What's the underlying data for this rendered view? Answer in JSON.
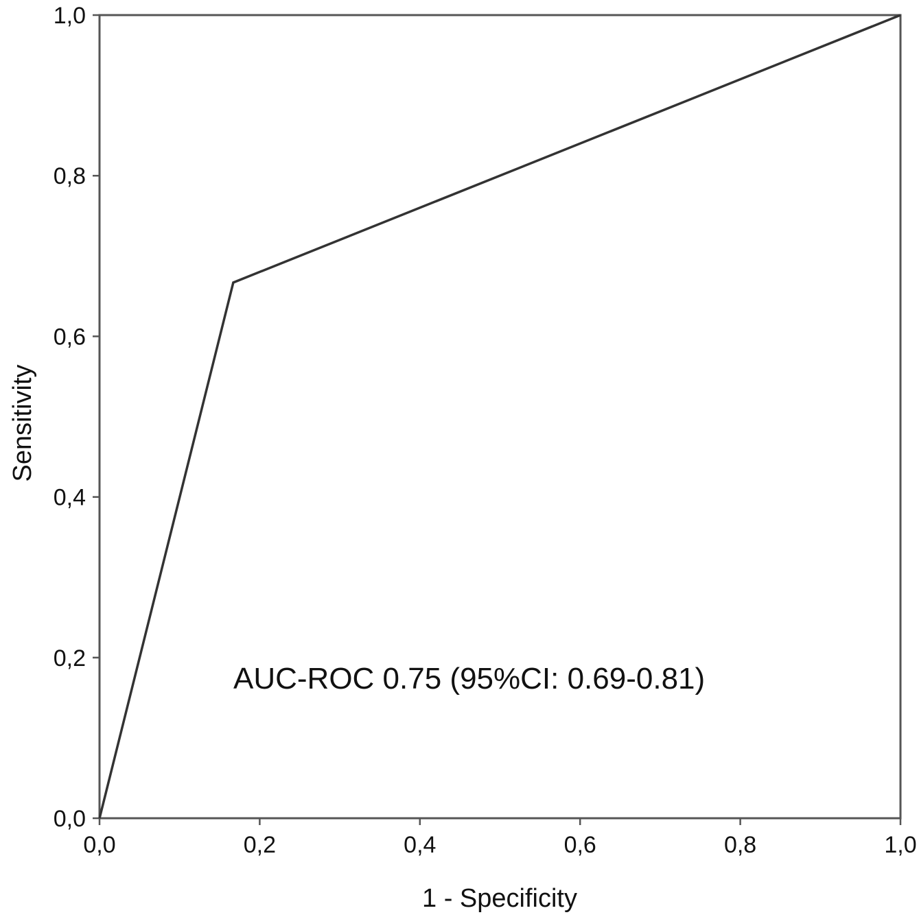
{
  "chart_data": {
    "type": "line",
    "title": "",
    "xlabel": "1 - Specificity",
    "ylabel": "Sensitivity",
    "xlim": [
      0,
      1
    ],
    "ylim": [
      0,
      1
    ],
    "x_ticks": [
      "0,0",
      "0,2",
      "0,4",
      "0,6",
      "0,8",
      "1,0"
    ],
    "y_ticks": [
      "0,0",
      "0,2",
      "0,4",
      "0,6",
      "0,8",
      "1,0"
    ],
    "grid": false,
    "series": [
      {
        "x": [
          0.0,
          0.167,
          1.0
        ],
        "y": [
          0.0,
          0.667,
          1.0
        ],
        "color": "#333333"
      }
    ],
    "annotations": [
      {
        "text": "AUC-ROC 0.75 (95%CI: 0.69-0.81)"
      }
    ]
  }
}
